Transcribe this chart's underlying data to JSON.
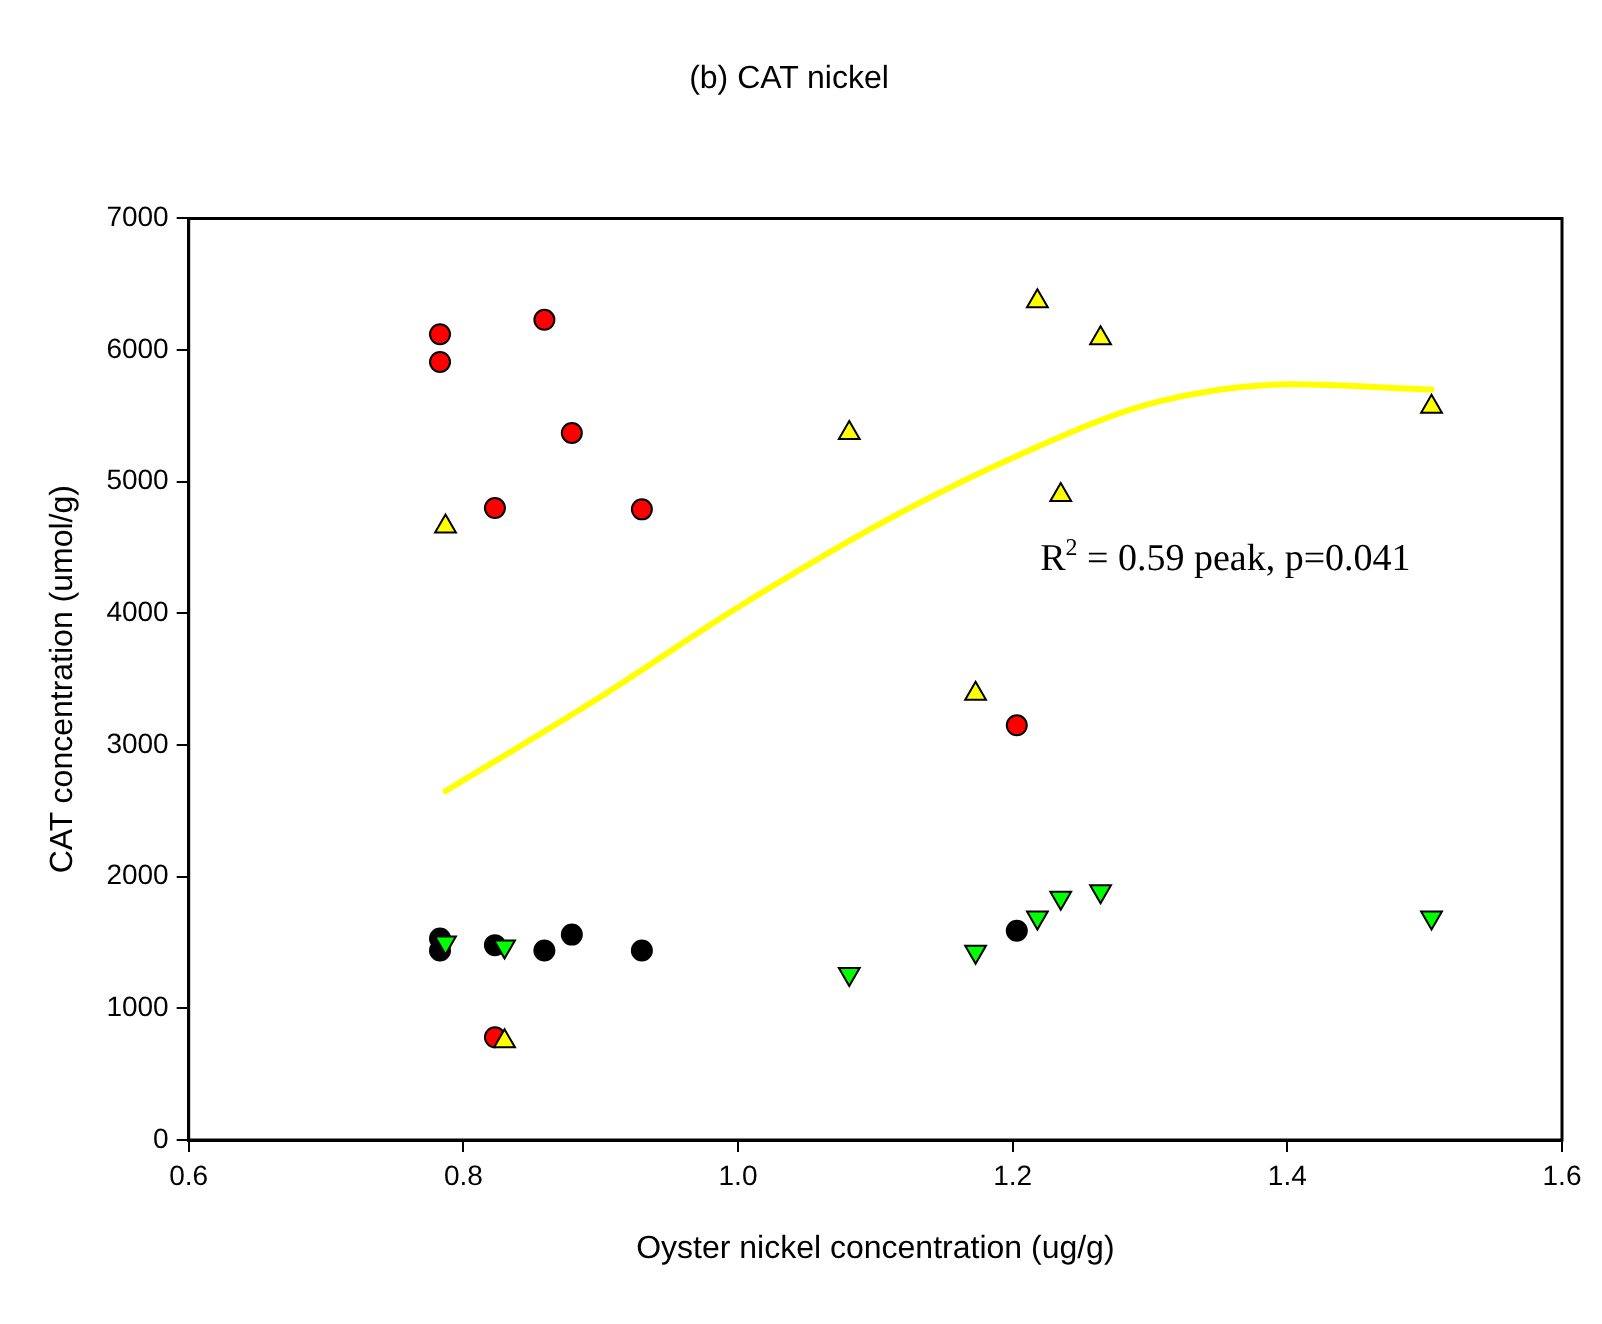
{
  "chart_data": {
    "type": "scatter",
    "title": "(b) CAT nickel",
    "xlabel": "Oyster nickel concentration (ug/g)",
    "ylabel": "CAT concentration (umol/g)",
    "xlim": [
      0.6,
      1.6
    ],
    "xticks": [
      {
        "value": 0.6,
        "label": "0.6"
      },
      {
        "value": 0.8,
        "label": "0.8"
      },
      {
        "value": 1.0,
        "label": "1.0"
      },
      {
        "value": 1.2,
        "label": "1.2"
      },
      {
        "value": 1.4,
        "label": "1.4"
      },
      {
        "value": 1.6,
        "label": "1.6"
      }
    ],
    "ylim": [
      0,
      7000
    ],
    "yticks": [
      0,
      1000,
      2000,
      3000,
      4000,
      5000,
      6000,
      7000
    ],
    "grid": false,
    "legend": false,
    "annotations": [
      "R$^{2}$ = 0.59 peak, p=0.041"
    ],
    "series": [
      {
        "type": "scatter",
        "marker": "circle",
        "color": "#ff0000",
        "x": [
          0.783,
          0.783,
          0.859,
          0.879,
          0.823,
          0.93,
          1.203,
          0.823
        ],
        "values": [
          6120,
          5910,
          6230,
          5370,
          4800,
          4790,
          3150,
          780
        ]
      },
      {
        "type": "scatter",
        "marker": "triangle",
        "color": "#ffff00",
        "x": [
          0.787,
          1.081,
          1.218,
          1.264,
          1.505,
          1.235,
          1.173,
          0.83
        ],
        "values": [
          4660,
          5370,
          6370,
          6090,
          5570,
          4900,
          3390,
          750
        ]
      },
      {
        "type": "scatter",
        "marker": "circle",
        "color": "#000000",
        "x": [
          0.783,
          0.783,
          0.823,
          0.859,
          0.879,
          0.93,
          1.203
        ],
        "values": [
          1530,
          1440,
          1480,
          1440,
          1560,
          1440,
          1590
        ]
      },
      {
        "type": "scatter",
        "marker": "triangle_down",
        "color": "#00ff00",
        "x": [
          0.787,
          0.83,
          1.081,
          1.173,
          1.218,
          1.235,
          1.264,
          1.505
        ],
        "values": [
          1500,
          1470,
          1260,
          1430,
          1690,
          1840,
          1890,
          1690
        ]
      },
      {
        "type": "line",
        "marker": "none",
        "color": "#ffff00",
        "x": [
          0.787,
          0.902,
          0.996,
          1.105,
          1.204,
          1.303,
          1.402,
          1.505
        ],
        "values": [
          2650,
          3380,
          4020,
          4690,
          5200,
          5600,
          5740,
          5700
        ]
      }
    ]
  }
}
